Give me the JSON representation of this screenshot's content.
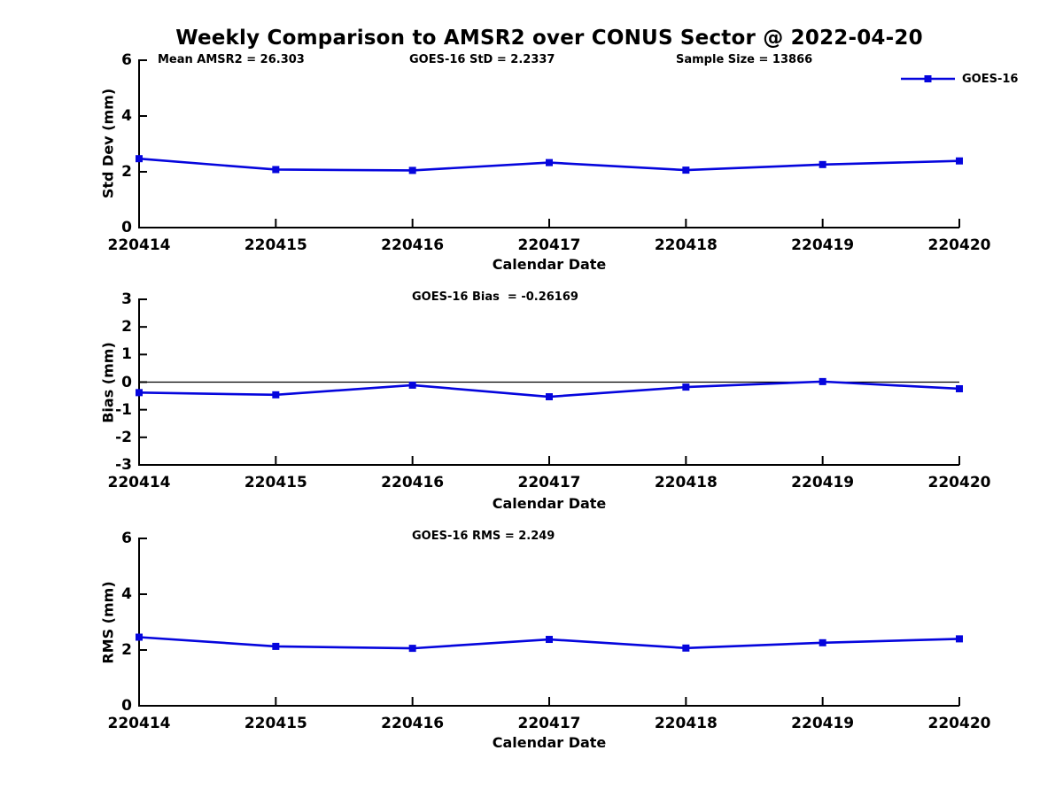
{
  "title": "Weekly Comparison to AMSR2 over CONUS Sector @ 2022-04-20",
  "colors": {
    "series": "#0505dd",
    "axis": "#000000",
    "zero_line": "#000000",
    "text": "#000000",
    "background": "#ffffff"
  },
  "chart_data": [
    {
      "id": "std-dev",
      "type": "line",
      "annotations": [
        "Mean AMSR2 = 26.303",
        "GOES-16 StD = 2.2337",
        "Sample Size = 13866"
      ],
      "categories": [
        "220414",
        "220415",
        "220416",
        "220417",
        "220418",
        "220419",
        "220420"
      ],
      "series": [
        {
          "name": "GOES-16",
          "values": [
            2.47,
            2.08,
            2.05,
            2.33,
            2.06,
            2.26,
            2.39
          ]
        }
      ],
      "xlabel": "Calendar Date",
      "ylabel": "Std Dev (mm)",
      "ylim": [
        0,
        6
      ],
      "yticks": [
        0,
        2,
        4,
        6
      ],
      "grid": false,
      "zero_line": false,
      "legend": {
        "label": "GOES-16",
        "position": "top-right"
      }
    },
    {
      "id": "bias",
      "type": "line",
      "annotations": [
        "GOES-16 Bias  = -0.26169"
      ],
      "categories": [
        "220414",
        "220415",
        "220416",
        "220417",
        "220418",
        "220419",
        "220420"
      ],
      "series": [
        {
          "name": "GOES-16",
          "values": [
            -0.38,
            -0.46,
            -0.11,
            -0.53,
            -0.18,
            0.02,
            -0.24
          ]
        }
      ],
      "xlabel": "Calendar Date",
      "ylabel": "Bias (mm)",
      "ylim": [
        -3,
        3
      ],
      "yticks": [
        -3,
        -2,
        -1,
        0,
        1,
        2,
        3
      ],
      "grid": false,
      "zero_line": true,
      "legend": null
    },
    {
      "id": "rms",
      "type": "line",
      "annotations": [
        "GOES-16 RMS = 2.249"
      ],
      "categories": [
        "220414",
        "220415",
        "220416",
        "220417",
        "220418",
        "220419",
        "220420"
      ],
      "series": [
        {
          "name": "GOES-16",
          "values": [
            2.46,
            2.13,
            2.06,
            2.38,
            2.07,
            2.26,
            2.4
          ]
        }
      ],
      "xlabel": "Calendar Date",
      "ylabel": "RMS (mm)",
      "ylim": [
        0,
        6
      ],
      "yticks": [
        0,
        2,
        4,
        6
      ],
      "grid": false,
      "zero_line": false,
      "legend": null
    }
  ]
}
